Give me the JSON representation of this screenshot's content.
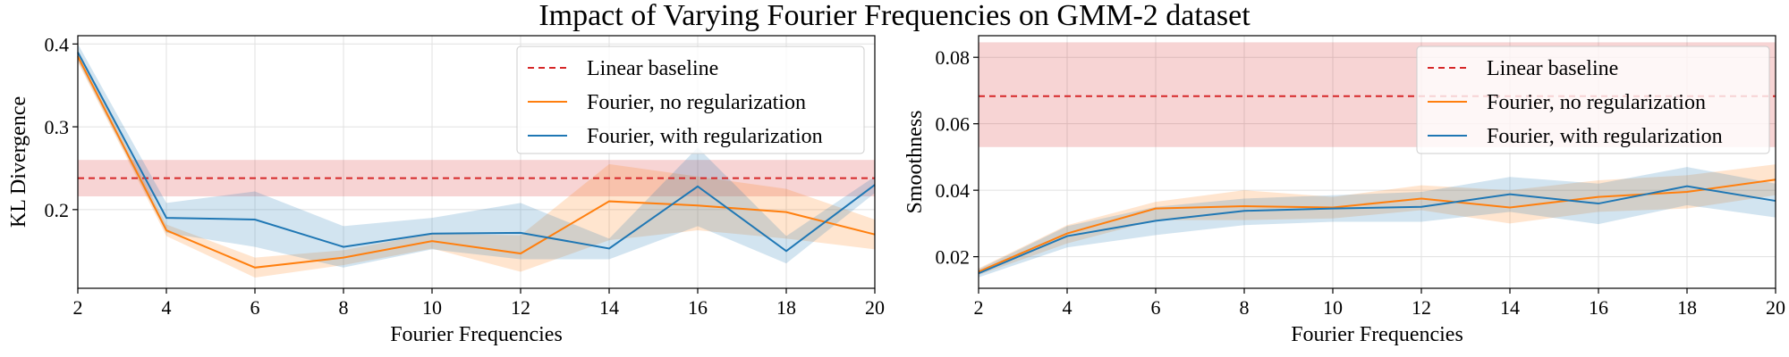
{
  "suptitle": "Impact of Varying Fourier Frequencies on GMM-2 dataset",
  "colors": {
    "baseline": "#d62728",
    "no_reg": "#ff7f0e",
    "with_reg": "#1f77b4",
    "grid": "#e0e0e0"
  },
  "chart_data": [
    {
      "type": "line",
      "title": "",
      "xlabel": "Fourier Frequencies",
      "ylabel": "KL Divergence",
      "xlim": [
        2,
        20
      ],
      "ylim": [
        0.105,
        0.41
      ],
      "xticks": [
        2,
        4,
        6,
        8,
        10,
        12,
        14,
        16,
        18,
        20
      ],
      "yticks": [
        0.2,
        0.3,
        0.4
      ],
      "ytick_labels": [
        "0.2",
        "0.3",
        "0.4"
      ],
      "grid": true,
      "legend_position": "top-right",
      "x": [
        2,
        4,
        6,
        8,
        10,
        12,
        14,
        16,
        18,
        20
      ],
      "baseline": {
        "name": "Linear baseline",
        "value": 0.238,
        "band": [
          0.216,
          0.26
        ]
      },
      "series": [
        {
          "name": "Fourier, no regularization",
          "color_key": "no_reg",
          "values": [
            0.385,
            0.175,
            0.13,
            0.142,
            0.162,
            0.147,
            0.21,
            0.205,
            0.197,
            0.17
          ],
          "lower": [
            0.378,
            0.168,
            0.118,
            0.133,
            0.153,
            0.125,
            0.163,
            0.175,
            0.165,
            0.152
          ],
          "upper": [
            0.392,
            0.182,
            0.142,
            0.151,
            0.171,
            0.169,
            0.255,
            0.24,
            0.225,
            0.188
          ]
        },
        {
          "name": "Fourier, with regularization",
          "color_key": "with_reg",
          "values": [
            0.39,
            0.19,
            0.188,
            0.155,
            0.171,
            0.172,
            0.153,
            0.228,
            0.15,
            0.23
          ],
          "lower": [
            0.38,
            0.172,
            0.155,
            0.13,
            0.152,
            0.14,
            0.14,
            0.18,
            0.135,
            0.22
          ],
          "upper": [
            0.4,
            0.208,
            0.222,
            0.18,
            0.19,
            0.208,
            0.165,
            0.275,
            0.168,
            0.24
          ]
        }
      ]
    },
    {
      "type": "line",
      "title": "",
      "xlabel": "Fourier Frequencies",
      "ylabel": "Smoothness",
      "xlim": [
        2,
        20
      ],
      "ylim": [
        0.0105,
        0.0865
      ],
      "xticks": [
        2,
        4,
        6,
        8,
        10,
        12,
        14,
        16,
        18,
        20
      ],
      "yticks": [
        0.02,
        0.04,
        0.06,
        0.08
      ],
      "ytick_labels": [
        "0.02",
        "0.04",
        "0.06",
        "0.08"
      ],
      "grid": true,
      "legend_position": "top-right",
      "x": [
        2,
        4,
        6,
        8,
        10,
        12,
        14,
        16,
        18,
        20
      ],
      "baseline": {
        "name": "Linear baseline",
        "value": 0.0683,
        "band": [
          0.053,
          0.0845
        ]
      },
      "series": [
        {
          "name": "Fourier, no regularization",
          "color_key": "no_reg",
          "values": [
            0.0155,
            0.027,
            0.0345,
            0.0352,
            0.0348,
            0.0375,
            0.0348,
            0.038,
            0.0395,
            0.0432
          ],
          "lower": [
            0.0145,
            0.024,
            0.031,
            0.031,
            0.0315,
            0.034,
            0.03,
            0.0335,
            0.0345,
            0.0385
          ],
          "upper": [
            0.0165,
            0.0295,
            0.0365,
            0.04,
            0.038,
            0.0415,
            0.04,
            0.043,
            0.0445,
            0.0478
          ]
        },
        {
          "name": "Fourier, with regularization",
          "color_key": "with_reg",
          "values": [
            0.015,
            0.0262,
            0.0308,
            0.0338,
            0.0345,
            0.035,
            0.0388,
            0.036,
            0.0412,
            0.0368
          ],
          "lower": [
            0.0138,
            0.0228,
            0.0265,
            0.0295,
            0.0305,
            0.0305,
            0.0335,
            0.0298,
            0.0355,
            0.0318
          ],
          "upper": [
            0.0162,
            0.0292,
            0.035,
            0.0375,
            0.0385,
            0.0395,
            0.044,
            0.042,
            0.047,
            0.042
          ]
        }
      ]
    }
  ]
}
